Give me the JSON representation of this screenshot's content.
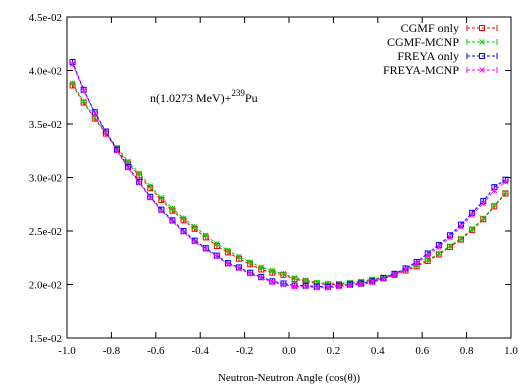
{
  "chart_data": {
    "type": "line",
    "xlabel": "Neutron-Neutron Angle (cos(θ))",
    "ylabel": "",
    "xlim": [
      -1.0,
      1.0
    ],
    "ylim": [
      0.015,
      0.045
    ],
    "xticks": [
      -1.0,
      -0.8,
      -0.6,
      -0.4,
      -0.2,
      0.0,
      0.2,
      0.4,
      0.6,
      0.8,
      1.0
    ],
    "xtick_labels": [
      "-1.0",
      "-0.8",
      "-0.6",
      "-0.4",
      "-0.2",
      "0.0",
      "0.2",
      "0.4",
      "0.6",
      "0.8",
      "1.0"
    ],
    "yticks": [
      0.015,
      0.02,
      0.025,
      0.03,
      0.035,
      0.04,
      0.045
    ],
    "ytick_labels": [
      "1.5e-02",
      "2.0e-02",
      "2.5e-02",
      "3.0e-02",
      "3.5e-02",
      "4.0e-02",
      "4.5e-02"
    ],
    "annotation": {
      "base": "n(1.0273 MeV)+",
      "sup": "239",
      "tail": "Pu"
    },
    "legend_position": "top-right",
    "grid": false,
    "x": [
      -0.975,
      -0.925,
      -0.875,
      -0.825,
      -0.775,
      -0.725,
      -0.675,
      -0.625,
      -0.575,
      -0.525,
      -0.475,
      -0.425,
      -0.375,
      -0.325,
      -0.275,
      -0.225,
      -0.175,
      -0.125,
      -0.075,
      -0.025,
      0.025,
      0.075,
      0.125,
      0.175,
      0.225,
      0.275,
      0.325,
      0.375,
      0.425,
      0.475,
      0.525,
      0.575,
      0.625,
      0.675,
      0.725,
      0.775,
      0.825,
      0.875,
      0.925,
      0.975
    ],
    "series": [
      {
        "name": "CGMF only",
        "color": "#ff0000",
        "marker": "square",
        "values": [
          0.0386,
          0.037,
          0.0355,
          0.0341,
          0.0327,
          0.0313,
          0.0302,
          0.029,
          0.0279,
          0.0269,
          0.026,
          0.0252,
          0.0244,
          0.0236,
          0.023,
          0.0224,
          0.0219,
          0.0214,
          0.0211,
          0.0209,
          0.0205,
          0.0203,
          0.0201,
          0.02,
          0.02,
          0.0201,
          0.0202,
          0.0204,
          0.0206,
          0.0209,
          0.0213,
          0.0217,
          0.0222,
          0.0228,
          0.0235,
          0.0242,
          0.0251,
          0.0261,
          0.0273,
          0.0285
        ]
      },
      {
        "name": "CGMF-MCNP",
        "color": "#00cc00",
        "marker": "x",
        "values": [
          0.0388,
          0.0371,
          0.0356,
          0.0342,
          0.0328,
          0.0315,
          0.0304,
          0.0292,
          0.0281,
          0.0271,
          0.0262,
          0.0254,
          0.0246,
          0.0238,
          0.0232,
          0.0226,
          0.0221,
          0.0216,
          0.0213,
          0.021,
          0.0206,
          0.0204,
          0.0202,
          0.0201,
          0.0201,
          0.0202,
          0.0203,
          0.0205,
          0.0207,
          0.021,
          0.0214,
          0.0218,
          0.0223,
          0.0229,
          0.0236,
          0.0243,
          0.0252,
          0.0262,
          0.0274,
          0.0286
        ]
      },
      {
        "name": "FREYA only",
        "color": "#0000ff",
        "marker": "square",
        "values": [
          0.0408,
          0.0382,
          0.0361,
          0.0343,
          0.0326,
          0.031,
          0.0296,
          0.0282,
          0.027,
          0.026,
          0.025,
          0.0241,
          0.0234,
          0.0227,
          0.022,
          0.0216,
          0.0211,
          0.0207,
          0.0203,
          0.0201,
          0.0199,
          0.0199,
          0.0198,
          0.0198,
          0.0199,
          0.02,
          0.0201,
          0.0203,
          0.0206,
          0.021,
          0.0215,
          0.0221,
          0.0229,
          0.0237,
          0.0246,
          0.0256,
          0.0267,
          0.0278,
          0.0291,
          0.0298
        ]
      },
      {
        "name": "FREYA-MCNP",
        "color": "#ff00ff",
        "marker": "x",
        "values": [
          0.0406,
          0.0381,
          0.036,
          0.0342,
          0.0325,
          0.0309,
          0.0295,
          0.0281,
          0.0269,
          0.0259,
          0.0249,
          0.024,
          0.0233,
          0.0226,
          0.0219,
          0.0215,
          0.021,
          0.0206,
          0.0202,
          0.02,
          0.0198,
          0.0198,
          0.0197,
          0.0197,
          0.0198,
          0.0199,
          0.02,
          0.0202,
          0.0205,
          0.0209,
          0.0214,
          0.022,
          0.0227,
          0.0235,
          0.0244,
          0.0254,
          0.0265,
          0.0276,
          0.0288,
          0.0296
        ]
      }
    ]
  }
}
